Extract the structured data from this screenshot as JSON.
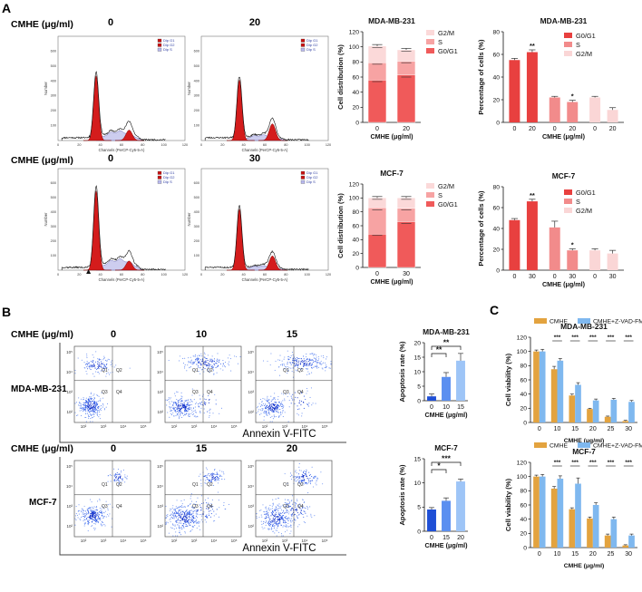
{
  "panel_labels": {
    "a": "A",
    "b": "B",
    "c": "C"
  },
  "section_a": {
    "row1": {
      "label": "CMHE (μg/ml)",
      "conc": [
        "0",
        "20"
      ]
    },
    "row2": {
      "label": "CMHE (μg/ml)",
      "conc": [
        "0",
        "30"
      ]
    },
    "histogram": {
      "x_caption": "Channels (PerCP-Cy5-5-A)",
      "y_caption": "Number",
      "legend": [
        "Dip G1",
        "Dip G2",
        "Dip S"
      ],
      "xticks": [
        "0",
        "20",
        "40",
        "60",
        "80",
        "100",
        "120"
      ],
      "yticks": [
        "100",
        "200",
        "300",
        "400",
        "500",
        "600"
      ]
    }
  },
  "section_b": {
    "row1": {
      "label": "CMHE (μg/ml)",
      "conc": [
        "0",
        "10",
        "15"
      ],
      "cell": "MDA-MB-231",
      "pi": "PI"
    },
    "row2": {
      "label": "CMHE (μg/ml)",
      "conc": [
        "0",
        "15",
        "20"
      ],
      "cell": "MCF-7",
      "pi": "PI"
    },
    "xaxis": "Annexin V-FITC",
    "quadrants": [
      "Q1",
      "Q2",
      "Q3",
      "Q4"
    ],
    "ticks": [
      "10²",
      "10³",
      "10⁴",
      "10⁵"
    ]
  },
  "chart_data": [
    {
      "id": "a_dist_mda",
      "type": "bar",
      "stacked": true,
      "title": "MDA-MB-231",
      "ylabel": "Cell distribution (%)",
      "xlabel": "CMHE (μg/ml)",
      "categories": [
        "0",
        "20"
      ],
      "ylim": [
        0,
        120
      ],
      "yticks": [
        0,
        20,
        40,
        60,
        80,
        100,
        120
      ],
      "series": [
        {
          "name": "G0/G1",
          "values": [
            56,
            63
          ],
          "err": [
            2,
            3
          ],
          "color": "#f05a5a"
        },
        {
          "name": "S",
          "values": [
            23,
            18
          ],
          "err": [
            2,
            2
          ],
          "color": "#f7a3a3"
        },
        {
          "name": "G2/M",
          "values": [
            22,
            15
          ],
          "err": [
            2,
            2
          ],
          "color": "#fbd9d9"
        }
      ]
    },
    {
      "id": "a_pct_mda",
      "type": "bar",
      "title": "MDA-MB-231",
      "ylabel": "Percentage of cells (%)",
      "xlabel": "CMHE (μg/ml)",
      "ylim": [
        0,
        80
      ],
      "yticks": [
        0,
        20,
        40,
        60,
        80
      ],
      "groups": [
        {
          "name": "G0/G1",
          "color": "#e8403f",
          "categories": [
            "0",
            "20"
          ],
          "values": [
            55,
            62
          ],
          "err": [
            1.5,
            2
          ],
          "sig": [
            "",
            "**"
          ]
        },
        {
          "name": "S",
          "color": "#f28b8b",
          "categories": [
            "0",
            "20"
          ],
          "values": [
            22,
            18
          ],
          "err": [
            1,
            1.5
          ],
          "sig": [
            "",
            "*"
          ]
        },
        {
          "name": "G2/M",
          "color": "#fad6d6",
          "categories": [
            "0",
            "20"
          ],
          "values": [
            22,
            11
          ],
          "err": [
            1,
            2
          ],
          "sig": [
            "",
            ""
          ]
        }
      ]
    },
    {
      "id": "a_dist_mcf",
      "type": "bar",
      "stacked": true,
      "title": "MCF-7",
      "ylabel": "Cell distribution (%)",
      "xlabel": "CMHE (μg/ml)",
      "categories": [
        "0",
        "30"
      ],
      "ylim": [
        0,
        120
      ],
      "yticks": [
        0,
        20,
        40,
        60,
        80,
        100,
        120
      ],
      "series": [
        {
          "name": "G0/G1",
          "values": [
            48,
            66
          ],
          "err": [
            2,
            3
          ],
          "color": "#f05a5a"
        },
        {
          "name": "S",
          "values": [
            38,
            19
          ],
          "err": [
            3,
            2
          ],
          "color": "#f7a3a3"
        },
        {
          "name": "G2/M",
          "values": [
            14,
            15
          ],
          "err": [
            2,
            2
          ],
          "color": "#fbd9d9"
        }
      ]
    },
    {
      "id": "a_pct_mcf",
      "type": "bar",
      "title": "MCF-7",
      "ylabel": "Percentage of cells (%)",
      "xlabel": "CMHE (μg/ml)",
      "ylim": [
        0,
        80
      ],
      "yticks": [
        0,
        20,
        40,
        60,
        80
      ],
      "groups": [
        {
          "name": "G0/G1",
          "color": "#e8403f",
          "categories": [
            "0",
            "30"
          ],
          "values": [
            48,
            66
          ],
          "err": [
            1.5,
            2
          ],
          "sig": [
            "",
            "**"
          ]
        },
        {
          "name": "S",
          "color": "#f28b8b",
          "categories": [
            "0",
            "30"
          ],
          "values": [
            41,
            19
          ],
          "err": [
            6,
            1.5
          ],
          "sig": [
            "",
            "*"
          ]
        },
        {
          "name": "G2/M",
          "color": "#fad6d6",
          "categories": [
            "0",
            "30"
          ],
          "values": [
            19,
            16
          ],
          "err": [
            1.5,
            3
          ],
          "sig": [
            "",
            ""
          ]
        }
      ]
    },
    {
      "id": "b_apo_mda",
      "type": "bar",
      "title": "MDA-MB-231",
      "ylabel": "Apoptosis rate (%)",
      "xlabel": "CMHE (μg/ml)",
      "categories": [
        "0",
        "10",
        "15"
      ],
      "values": [
        1.5,
        8.2,
        13.8
      ],
      "err": [
        0.8,
        1.5,
        2.5
      ],
      "colors": [
        "#1f4fd6",
        "#5b8ff0",
        "#9ec5f7"
      ],
      "ylim": [
        0,
        20
      ],
      "yticks": [
        0,
        5,
        10,
        15,
        20
      ],
      "brackets": [
        {
          "from": 0,
          "to": 1,
          "label": "**",
          "level": 0
        },
        {
          "from": 0,
          "to": 2,
          "label": "**",
          "level": 1
        }
      ]
    },
    {
      "id": "b_apo_mcf",
      "type": "bar",
      "title": "MCF-7",
      "ylabel": "Apoptosis rate (%)",
      "xlabel": "CMHE (μg/ml)",
      "categories": [
        "0",
        "15",
        "20"
      ],
      "values": [
        4.5,
        6.3,
        10.3
      ],
      "err": [
        0.4,
        0.6,
        0.5
      ],
      "colors": [
        "#1f4fd6",
        "#5b8ff0",
        "#9ec5f7"
      ],
      "ylim": [
        0,
        15
      ],
      "yticks": [
        0,
        5,
        10,
        15
      ],
      "brackets": [
        {
          "from": 0,
          "to": 1,
          "label": "*",
          "level": 0
        },
        {
          "from": 0,
          "to": 2,
          "label": "***",
          "level": 1
        }
      ]
    },
    {
      "id": "c_via_mda",
      "type": "bar",
      "title": "MDA-MB-231",
      "ylabel": "Cell viability (%)",
      "xlabel": "CMHE (μg/ml)",
      "categories": [
        "0",
        "10",
        "15",
        "20",
        "25",
        "30"
      ],
      "ylim": [
        0,
        120
      ],
      "yticks": [
        0,
        20,
        40,
        60,
        80,
        100,
        120
      ],
      "series": [
        {
          "name": "CMHE",
          "values": [
            100,
            75,
            38,
            19,
            8,
            2
          ],
          "err": [
            2,
            4,
            2,
            1,
            1,
            1
          ],
          "color": "#e3a33f"
        },
        {
          "name": "CMHE+Z-VAD-FMK",
          "values": [
            100,
            87,
            53,
            31,
            32,
            29
          ],
          "err": [
            3,
            3,
            3,
            2,
            2,
            2
          ],
          "color": "#7fb8ef"
        }
      ],
      "sig": [
        "",
        "***",
        "***",
        "***",
        "***",
        "***"
      ]
    },
    {
      "id": "c_via_mcf",
      "type": "bar",
      "title": "MCF-7",
      "ylabel": "Cell viability (%)",
      "xlabel": "CMHE (μg/ml)",
      "categories": [
        "0",
        "10",
        "15",
        "20",
        "25",
        "30"
      ],
      "ylim": [
        0,
        120
      ],
      "yticks": [
        0,
        20,
        40,
        60,
        80,
        100,
        120
      ],
      "series": [
        {
          "name": "CMHE",
          "values": [
            100,
            83,
            54,
            41,
            17,
            3
          ],
          "err": [
            2,
            3,
            2,
            2,
            2,
            1
          ],
          "color": "#e3a33f"
        },
        {
          "name": "CMHE+Z-VAD-FMK",
          "values": [
            100,
            97,
            90,
            60,
            40,
            17
          ],
          "err": [
            3,
            4,
            8,
            3,
            3,
            2
          ],
          "color": "#7fb8ef"
        }
      ],
      "sig": [
        "",
        "***",
        "***",
        "***",
        "***",
        "***"
      ]
    }
  ]
}
